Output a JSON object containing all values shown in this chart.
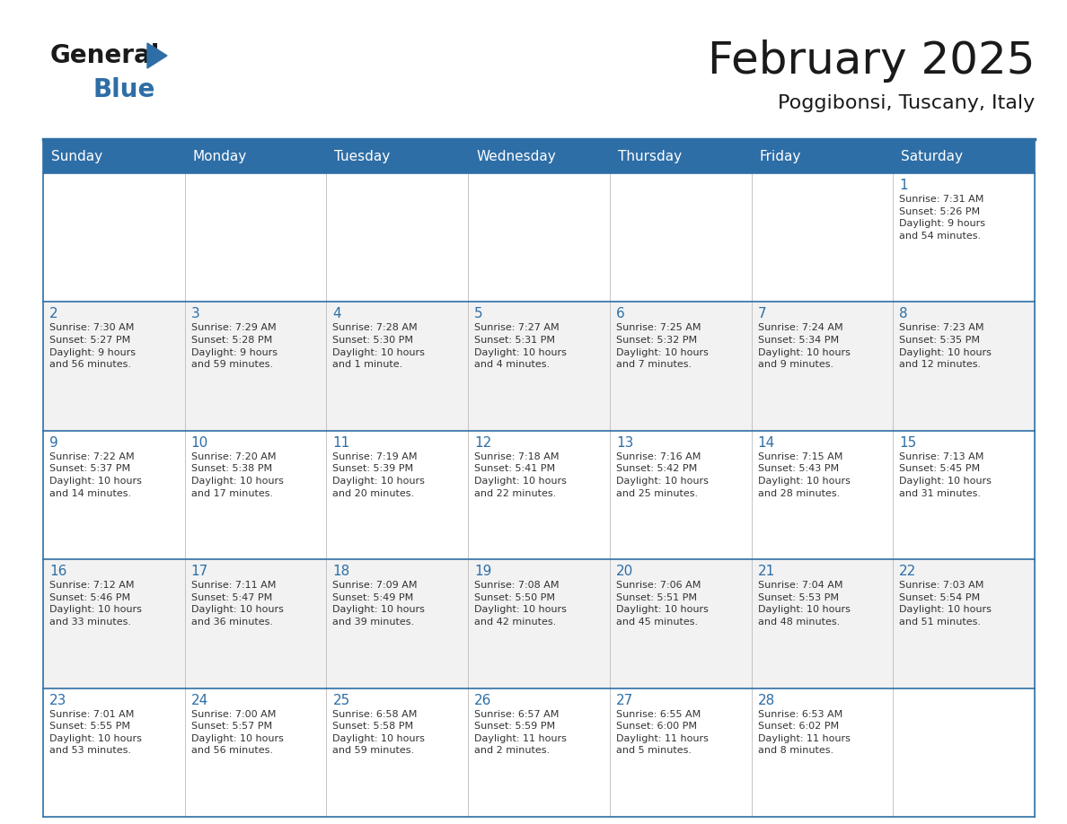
{
  "title": "February 2025",
  "subtitle": "Poggibonsi, Tuscany, Italy",
  "header_bg": "#2E6EA6",
  "header_text": "#FFFFFF",
  "day_number_color": "#2E6EA6",
  "text_color": "#333333",
  "days_of_week": [
    "Sunday",
    "Monday",
    "Tuesday",
    "Wednesday",
    "Thursday",
    "Friday",
    "Saturday"
  ],
  "weeks": [
    [
      {
        "day": null,
        "info": null
      },
      {
        "day": null,
        "info": null
      },
      {
        "day": null,
        "info": null
      },
      {
        "day": null,
        "info": null
      },
      {
        "day": null,
        "info": null
      },
      {
        "day": null,
        "info": null
      },
      {
        "day": 1,
        "info": "Sunrise: 7:31 AM\nSunset: 5:26 PM\nDaylight: 9 hours\nand 54 minutes."
      }
    ],
    [
      {
        "day": 2,
        "info": "Sunrise: 7:30 AM\nSunset: 5:27 PM\nDaylight: 9 hours\nand 56 minutes."
      },
      {
        "day": 3,
        "info": "Sunrise: 7:29 AM\nSunset: 5:28 PM\nDaylight: 9 hours\nand 59 minutes."
      },
      {
        "day": 4,
        "info": "Sunrise: 7:28 AM\nSunset: 5:30 PM\nDaylight: 10 hours\nand 1 minute."
      },
      {
        "day": 5,
        "info": "Sunrise: 7:27 AM\nSunset: 5:31 PM\nDaylight: 10 hours\nand 4 minutes."
      },
      {
        "day": 6,
        "info": "Sunrise: 7:25 AM\nSunset: 5:32 PM\nDaylight: 10 hours\nand 7 minutes."
      },
      {
        "day": 7,
        "info": "Sunrise: 7:24 AM\nSunset: 5:34 PM\nDaylight: 10 hours\nand 9 minutes."
      },
      {
        "day": 8,
        "info": "Sunrise: 7:23 AM\nSunset: 5:35 PM\nDaylight: 10 hours\nand 12 minutes."
      }
    ],
    [
      {
        "day": 9,
        "info": "Sunrise: 7:22 AM\nSunset: 5:37 PM\nDaylight: 10 hours\nand 14 minutes."
      },
      {
        "day": 10,
        "info": "Sunrise: 7:20 AM\nSunset: 5:38 PM\nDaylight: 10 hours\nand 17 minutes."
      },
      {
        "day": 11,
        "info": "Sunrise: 7:19 AM\nSunset: 5:39 PM\nDaylight: 10 hours\nand 20 minutes."
      },
      {
        "day": 12,
        "info": "Sunrise: 7:18 AM\nSunset: 5:41 PM\nDaylight: 10 hours\nand 22 minutes."
      },
      {
        "day": 13,
        "info": "Sunrise: 7:16 AM\nSunset: 5:42 PM\nDaylight: 10 hours\nand 25 minutes."
      },
      {
        "day": 14,
        "info": "Sunrise: 7:15 AM\nSunset: 5:43 PM\nDaylight: 10 hours\nand 28 minutes."
      },
      {
        "day": 15,
        "info": "Sunrise: 7:13 AM\nSunset: 5:45 PM\nDaylight: 10 hours\nand 31 minutes."
      }
    ],
    [
      {
        "day": 16,
        "info": "Sunrise: 7:12 AM\nSunset: 5:46 PM\nDaylight: 10 hours\nand 33 minutes."
      },
      {
        "day": 17,
        "info": "Sunrise: 7:11 AM\nSunset: 5:47 PM\nDaylight: 10 hours\nand 36 minutes."
      },
      {
        "day": 18,
        "info": "Sunrise: 7:09 AM\nSunset: 5:49 PM\nDaylight: 10 hours\nand 39 minutes."
      },
      {
        "day": 19,
        "info": "Sunrise: 7:08 AM\nSunset: 5:50 PM\nDaylight: 10 hours\nand 42 minutes."
      },
      {
        "day": 20,
        "info": "Sunrise: 7:06 AM\nSunset: 5:51 PM\nDaylight: 10 hours\nand 45 minutes."
      },
      {
        "day": 21,
        "info": "Sunrise: 7:04 AM\nSunset: 5:53 PM\nDaylight: 10 hours\nand 48 minutes."
      },
      {
        "day": 22,
        "info": "Sunrise: 7:03 AM\nSunset: 5:54 PM\nDaylight: 10 hours\nand 51 minutes."
      }
    ],
    [
      {
        "day": 23,
        "info": "Sunrise: 7:01 AM\nSunset: 5:55 PM\nDaylight: 10 hours\nand 53 minutes."
      },
      {
        "day": 24,
        "info": "Sunrise: 7:00 AM\nSunset: 5:57 PM\nDaylight: 10 hours\nand 56 minutes."
      },
      {
        "day": 25,
        "info": "Sunrise: 6:58 AM\nSunset: 5:58 PM\nDaylight: 10 hours\nand 59 minutes."
      },
      {
        "day": 26,
        "info": "Sunrise: 6:57 AM\nSunset: 5:59 PM\nDaylight: 11 hours\nand 2 minutes."
      },
      {
        "day": 27,
        "info": "Sunrise: 6:55 AM\nSunset: 6:00 PM\nDaylight: 11 hours\nand 5 minutes."
      },
      {
        "day": 28,
        "info": "Sunrise: 6:53 AM\nSunset: 6:02 PM\nDaylight: 11 hours\nand 8 minutes."
      },
      {
        "day": null,
        "info": null
      }
    ]
  ],
  "logo_general_color": "#1a1a1a",
  "logo_blue_color": "#2E6EA6",
  "logo_triangle_color": "#2E6EA6",
  "title_fontsize": 36,
  "subtitle_fontsize": 16,
  "header_fontsize": 11,
  "day_num_fontsize": 11,
  "cell_text_fontsize": 8,
  "cell_bg_even": "#FFFFFF",
  "cell_bg_odd": "#F2F2F2"
}
